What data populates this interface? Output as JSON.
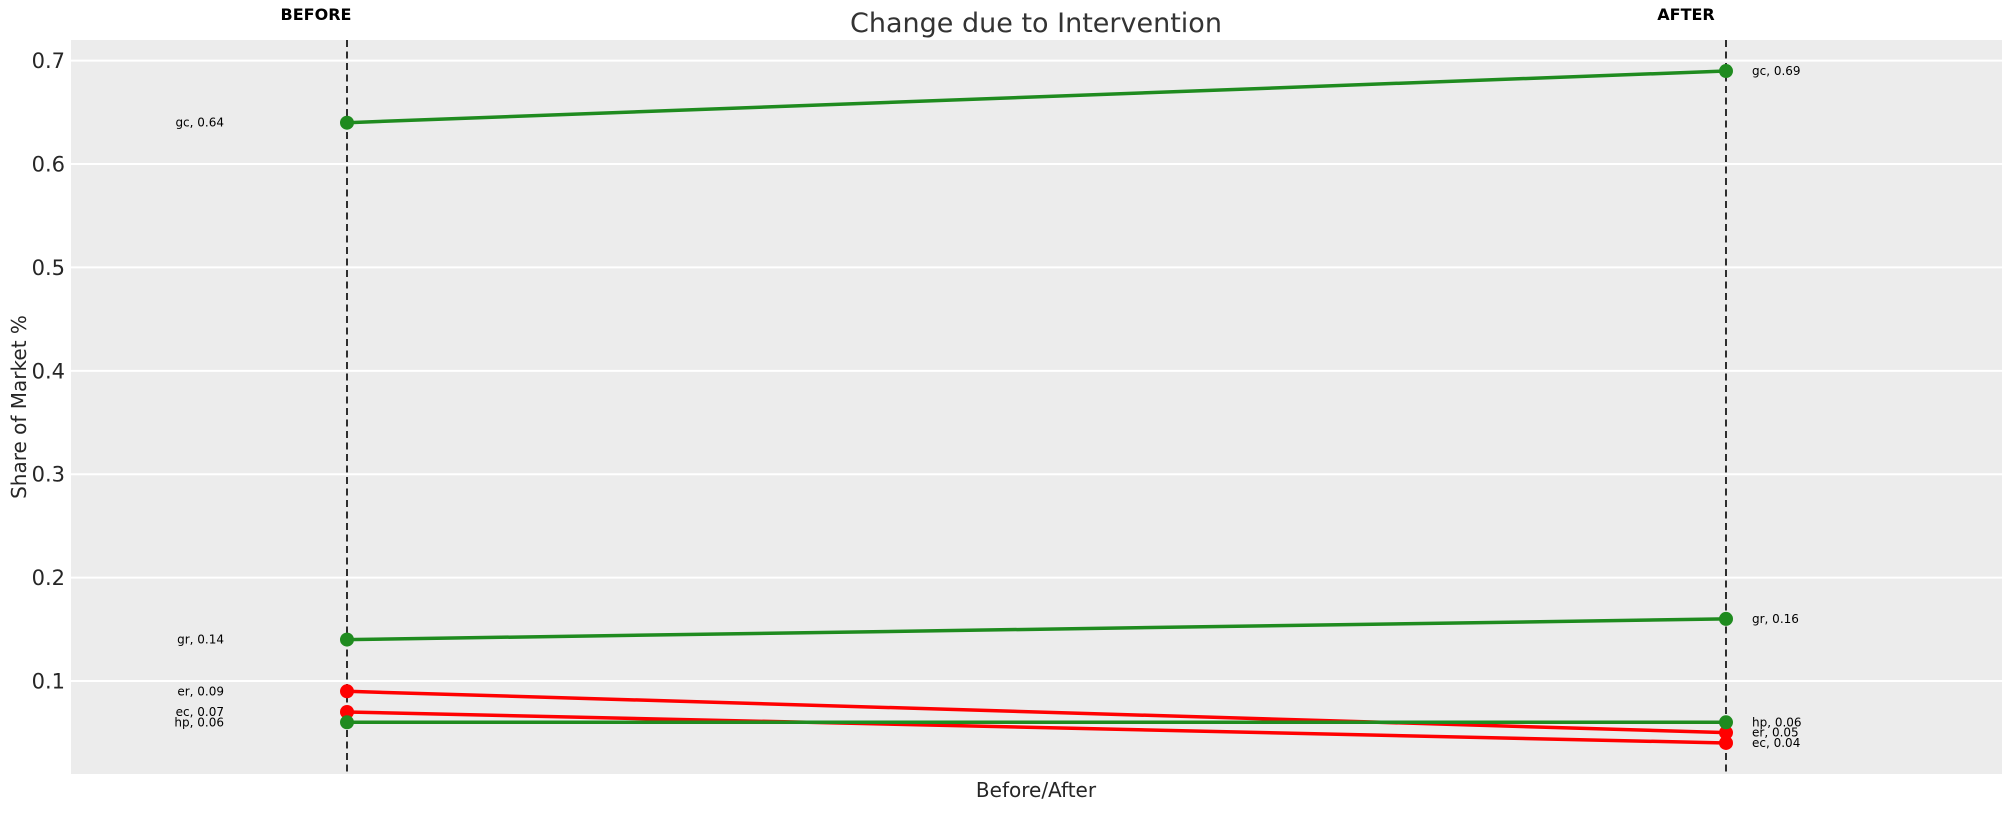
{
  "chart_data": {
    "type": "line",
    "variant": "slopegraph",
    "title": "Change due to Intervention",
    "xlabel": "Before/After",
    "ylabel": "Share of Market %",
    "categories": [
      "BEFORE",
      "AFTER"
    ],
    "ylim": [
      0.01,
      0.72
    ],
    "yticks": [
      0.1,
      0.2,
      0.3,
      0.4,
      0.5,
      0.6,
      0.7
    ],
    "grid": true,
    "legend": false,
    "plot_bg_color": "#ECECEC",
    "grid_color": "#FFFFFF",
    "divider_color": "#1A1A1A",
    "increase_color": "#1F8B1F",
    "decrease_color": "#FF0000",
    "series": [
      {
        "name": "gc",
        "color": "#1F8B1F",
        "values": [
          0.64,
          0.69
        ],
        "point_labels": [
          "gc, 0.64",
          "gc, 0.69"
        ]
      },
      {
        "name": "gr",
        "color": "#1F8B1F",
        "values": [
          0.14,
          0.16
        ],
        "point_labels": [
          "gr, 0.14",
          "gr, 0.16"
        ]
      },
      {
        "name": "er",
        "color": "#FF0000",
        "values": [
          0.09,
          0.05
        ],
        "point_labels": [
          "er, 0.09",
          "er, 0.05"
        ]
      },
      {
        "name": "ec",
        "color": "#FF0000",
        "values": [
          0.07,
          0.04
        ],
        "point_labels": [
          "ec, 0.07",
          "ec, 0.04"
        ]
      },
      {
        "name": "hp",
        "color": "#1F8B1F",
        "values": [
          0.06,
          0.06
        ],
        "point_labels": [
          "hp, 0.06",
          "hp, 0.06"
        ]
      }
    ]
  }
}
